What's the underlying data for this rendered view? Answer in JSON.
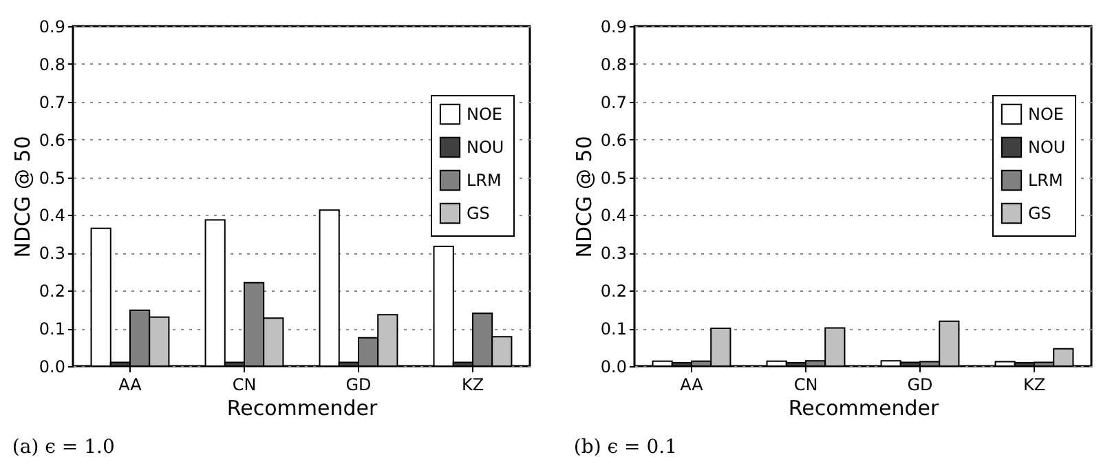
{
  "chart_data": [
    {
      "type": "bar",
      "xlabel": "Recommender",
      "ylabel": "NDCG @ 50",
      "categories": [
        "AA",
        "CN",
        "GD",
        "KZ"
      ],
      "series": [
        {
          "name": "NOE",
          "color": "#ffffff",
          "values": [
            0.365,
            0.387,
            0.413,
            0.317
          ]
        },
        {
          "name": "NOU",
          "color": "#404040",
          "values": [
            0.01,
            0.01,
            0.01,
            0.01
          ]
        },
        {
          "name": "LRM",
          "color": "#808080",
          "values": [
            0.148,
            0.221,
            0.075,
            0.14
          ]
        },
        {
          "name": "GS",
          "color": "#c0c0c0",
          "values": [
            0.13,
            0.127,
            0.136,
            0.078
          ]
        }
      ],
      "ylim": [
        0,
        0.9
      ],
      "yticks": [
        {
          "value": 0,
          "label": "0.0"
        },
        0.1,
        0.2,
        0.3,
        0.4,
        0.5,
        0.6,
        0.7,
        0.8,
        0.9
      ],
      "grid": "y",
      "legend": "right",
      "annotations": [
        "(a) ϵ = 1.0"
      ]
    },
    {
      "type": "bar",
      "xlabel": "Recommender",
      "ylabel": "NDCG @ 50",
      "categories": [
        "AA",
        "CN",
        "GD",
        "KZ"
      ],
      "series": [
        {
          "name": "NOE",
          "color": "#ffffff",
          "values": [
            0.013,
            0.013,
            0.014,
            0.012
          ]
        },
        {
          "name": "NOU",
          "color": "#404040",
          "values": [
            0.009,
            0.009,
            0.01,
            0.009
          ]
        },
        {
          "name": "LRM",
          "color": "#808080",
          "values": [
            0.013,
            0.014,
            0.012,
            0.01
          ]
        },
        {
          "name": "GS",
          "color": "#c0c0c0",
          "values": [
            0.1,
            0.101,
            0.119,
            0.046
          ]
        }
      ],
      "ylim": [
        0,
        0.9
      ],
      "yticks": [
        {
          "value": 0,
          "label": "0.0"
        },
        0.1,
        0.2,
        0.3,
        0.4,
        0.5,
        0.6,
        0.7,
        0.8,
        0.9
      ],
      "grid": "y",
      "legend": "right",
      "annotations": [
        "(b) ϵ = 0.1"
      ]
    }
  ]
}
